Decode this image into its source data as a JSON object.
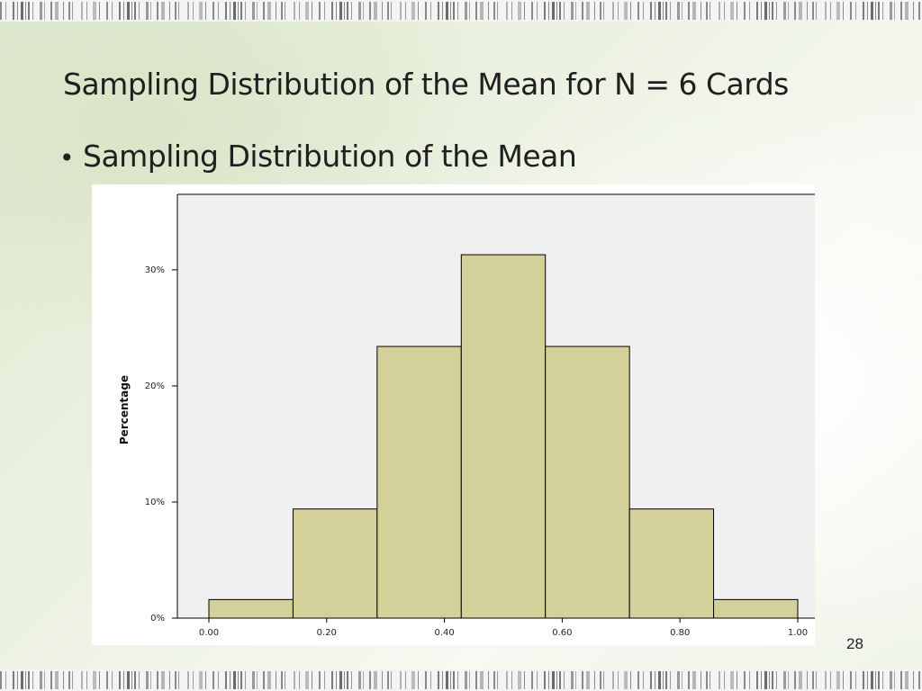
{
  "slide": {
    "title": "Sampling Distribution of the Mean for N = 6 Cards",
    "bullet": "Sampling Distribution of the Mean",
    "page_number": "28"
  },
  "colors": {
    "bar_fill": "#d4d09a",
    "bar_stroke": "#000000",
    "plot_background": "#f0f0f0",
    "chart_background": "#ffffff"
  },
  "chart_data": {
    "type": "bar",
    "title": "",
    "xlabel": "",
    "ylabel": "Percentage",
    "x_tick_labels": [
      "0.00",
      "0.20",
      "0.40",
      "0.60",
      "0.80",
      "1.00"
    ],
    "y_tick_labels": [
      "0%",
      "10%",
      "20%",
      "30%"
    ],
    "xlim": [
      0.0,
      1.0
    ],
    "ylim": [
      0,
      36.5
    ],
    "bins": [
      {
        "start": 0.0,
        "end": 0.1429,
        "value": 1.6
      },
      {
        "start": 0.1429,
        "end": 0.2857,
        "value": 9.4
      },
      {
        "start": 0.2857,
        "end": 0.4286,
        "value": 23.4
      },
      {
        "start": 0.4286,
        "end": 0.5714,
        "value": 31.3
      },
      {
        "start": 0.5714,
        "end": 0.7143,
        "value": 23.4
      },
      {
        "start": 0.7143,
        "end": 0.8571,
        "value": 9.4
      },
      {
        "start": 0.8571,
        "end": 1.0,
        "value": 1.6
      }
    ],
    "grid": false,
    "legend": "none"
  }
}
